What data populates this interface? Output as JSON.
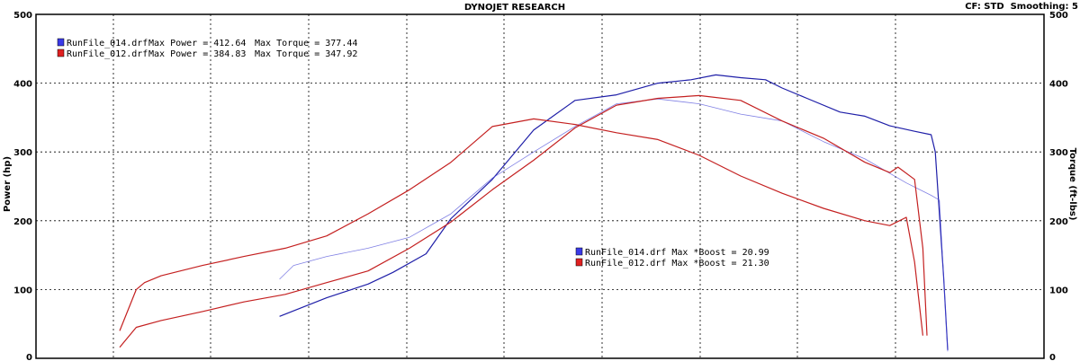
{
  "chart_data": {
    "type": "line",
    "title": "DYNOJET RESEARCH",
    "header_right": "CF: STD  Smoothing: 5",
    "ylabel_left": "Power (hp)",
    "ylabel_right": "Torque (ft-lbs)",
    "ylim": [
      0,
      500
    ],
    "yticks": [
      "0",
      "100",
      "200",
      "300",
      "400",
      "500"
    ],
    "grid": true,
    "colors": {
      "run_014": "#1f1fa8",
      "run_012": "#c42020",
      "box_014": "#3a3ae8",
      "box_012": "#e02020"
    },
    "legend_top": [
      {
        "file": "RunFile_014.drf",
        "power_label": "Max Power = 412.64",
        "torque_label": "Max Torque = 377.44",
        "color": "#1f1fa8"
      },
      {
        "file": "RunFile_012.drf",
        "power_label": "Max Power = 384.83",
        "torque_label": "Max Torque = 347.92",
        "color": "#c42020"
      }
    ],
    "legend_boost": [
      {
        "text": "RunFile_014.drf Max *Boost = 20.99",
        "color": "#3a3ae8"
      },
      {
        "text": "RunFile_012.drf Max *Boost = 21.30",
        "color": "#e02020"
      }
    ],
    "series": [
      {
        "name": "RunFile_014.drf Max Power",
        "color": "#1f1fa8",
        "width": 1.2,
        "opacity": 1,
        "x": [
          0.193,
          0.25,
          0.3,
          0.33,
          0.37,
          0.4,
          0.45,
          0.5,
          0.55,
          0.6,
          0.65,
          0.69,
          0.72,
          0.75,
          0.78,
          0.8,
          0.83,
          0.87,
          0.9,
          0.93,
          0.96,
          0.98,
          0.985,
          0.995,
          1.0
        ],
        "values": [
          61,
          88,
          108,
          125,
          152,
          203,
          260,
          332,
          375,
          383,
          400,
          405,
          412,
          408,
          405,
          393,
          378,
          358,
          352,
          338,
          330,
          325,
          300,
          120,
          12
        ]
      },
      {
        "name": "RunFile_014.drf Max Torque",
        "color": "#4a4ad8",
        "width": 0.8,
        "opacity": 0.7,
        "x": [
          0.193,
          0.21,
          0.25,
          0.3,
          0.35,
          0.4,
          0.45,
          0.5,
          0.55,
          0.6,
          0.65,
          0.7,
          0.75,
          0.8,
          0.85,
          0.9,
          0.95,
          0.98,
          0.99,
          1.0
        ],
        "values": [
          115,
          135,
          148,
          160,
          176,
          210,
          262,
          300,
          337,
          370,
          377,
          370,
          355,
          345,
          315,
          290,
          255,
          237,
          230,
          10
        ]
      },
      {
        "name": "RunFile_012.drf Max Power",
        "color": "#c42020",
        "width": 1.2,
        "opacity": 1,
        "x": [
          0.0,
          0.02,
          0.05,
          0.1,
          0.15,
          0.2,
          0.25,
          0.3,
          0.35,
          0.4,
          0.45,
          0.5,
          0.55,
          0.6,
          0.65,
          0.7,
          0.75,
          0.8,
          0.85,
          0.9,
          0.93,
          0.94,
          0.96,
          0.97,
          0.975
        ],
        "values": [
          16,
          45,
          55,
          68,
          82,
          93,
          110,
          127,
          160,
          198,
          245,
          288,
          335,
          368,
          378,
          382,
          375,
          345,
          320,
          285,
          270,
          278,
          260,
          160,
          33
        ]
      },
      {
        "name": "RunFile_012.drf Max Torque",
        "color": "#c42020",
        "width": 1.2,
        "opacity": 1,
        "x": [
          0.0,
          0.02,
          0.03,
          0.05,
          0.1,
          0.15,
          0.2,
          0.25,
          0.3,
          0.35,
          0.4,
          0.45,
          0.5,
          0.55,
          0.6,
          0.65,
          0.7,
          0.75,
          0.8,
          0.85,
          0.9,
          0.93,
          0.95,
          0.96,
          0.97
        ],
        "values": [
          40,
          100,
          110,
          120,
          135,
          148,
          160,
          178,
          210,
          245,
          285,
          337,
          348,
          340,
          328,
          318,
          295,
          265,
          240,
          218,
          200,
          193,
          205,
          140,
          33
        ]
      }
    ]
  }
}
